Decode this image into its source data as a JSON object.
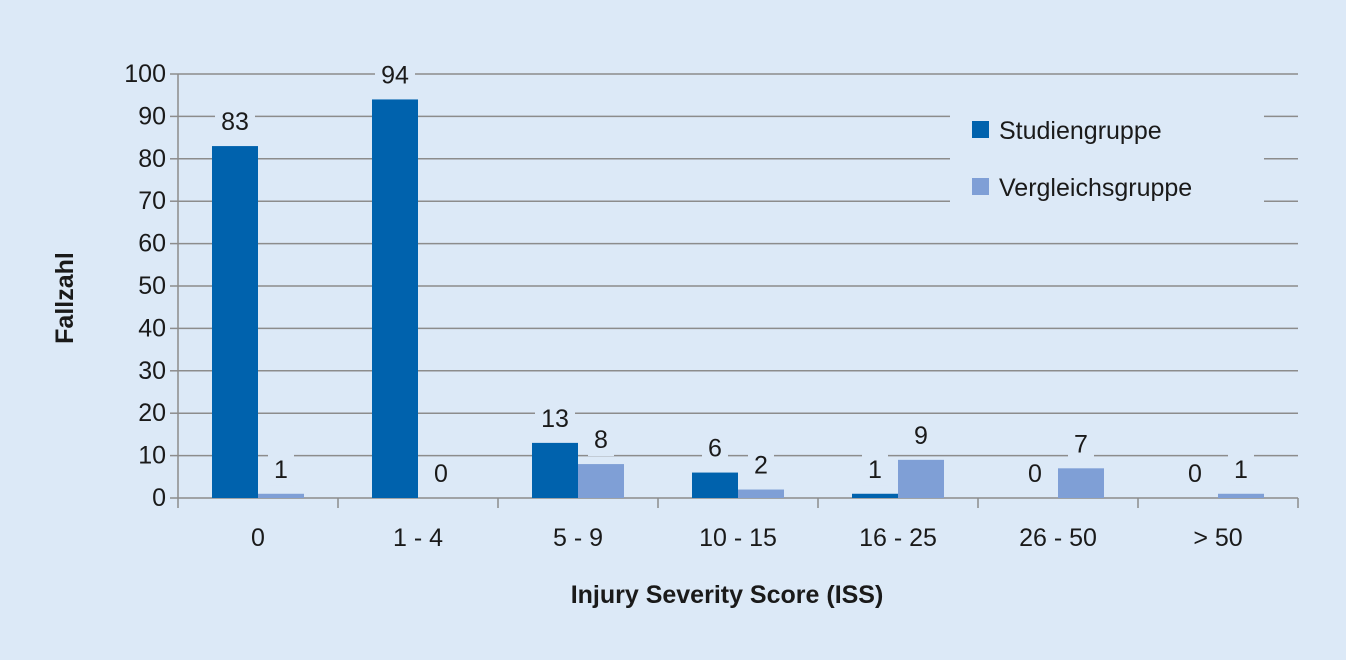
{
  "chart_data": {
    "type": "bar",
    "title": "",
    "xlabel": "Injury Severity Score (ISS)",
    "ylabel": "Fallzahl",
    "ylim": [
      0,
      100
    ],
    "yticks": [
      0,
      10,
      20,
      30,
      40,
      50,
      60,
      70,
      80,
      90,
      100
    ],
    "grid": true,
    "legend_position": "top-right",
    "categories": [
      "0",
      "1 - 4",
      "5 - 9",
      "10 - 15",
      "16 - 25",
      "26 - 50",
      "> 50"
    ],
    "series": [
      {
        "name": "Studiengruppe",
        "color": "#0062ad",
        "values": [
          83,
          94,
          13,
          6,
          1,
          0,
          0
        ]
      },
      {
        "name": "Vergleichsgruppe",
        "color": "#7f9fd6",
        "values": [
          1,
          0,
          8,
          2,
          9,
          7,
          1
        ]
      }
    ]
  }
}
